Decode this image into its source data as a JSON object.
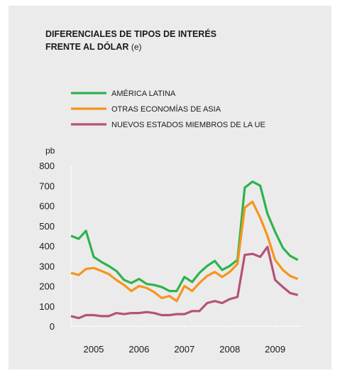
{
  "chart_data": {
    "type": "line",
    "title": [
      "DIFERENCIALES DE TIPOS DE INTERÉS",
      "FRENTE AL DÓLAR"
    ],
    "title_note": "(e)",
    "y_unit": "pb",
    "x": [
      2005.0,
      2005.17,
      2005.33,
      2005.5,
      2005.67,
      2005.83,
      2006.0,
      2006.17,
      2006.33,
      2006.5,
      2006.67,
      2006.83,
      2007.0,
      2007.17,
      2007.33,
      2007.5,
      2007.67,
      2007.83,
      2008.0,
      2008.17,
      2008.33,
      2008.5,
      2008.67,
      2008.83,
      2009.0,
      2009.17,
      2009.33,
      2009.5,
      2009.67,
      2009.83,
      2010.0
    ],
    "series": [
      {
        "name": "AMÉRICA LATINA",
        "color": "#2eb34b",
        "values": [
          450,
          435,
          475,
          345,
          320,
          300,
          275,
          230,
          215,
          235,
          210,
          205,
          195,
          175,
          175,
          245,
          220,
          265,
          300,
          325,
          280,
          300,
          330,
          690,
          720,
          700,
          560,
          470,
          390,
          350,
          330
        ]
      },
      {
        "name": "OTRAS ECONOMÍAS DE ASIA",
        "color": "#f7941d",
        "values": [
          265,
          255,
          285,
          290,
          275,
          260,
          230,
          205,
          175,
          200,
          190,
          170,
          140,
          150,
          125,
          200,
          175,
          215,
          250,
          270,
          245,
          270,
          310,
          590,
          620,
          540,
          450,
          330,
          280,
          250,
          235
        ]
      },
      {
        "name": "NUEVOS ESTADOS MIEMBROS DE LA UE",
        "color": "#b4527a",
        "values": [
          50,
          40,
          55,
          55,
          50,
          50,
          65,
          60,
          65,
          65,
          70,
          65,
          55,
          55,
          60,
          60,
          75,
          75,
          115,
          125,
          115,
          135,
          145,
          355,
          360,
          345,
          395,
          230,
          195,
          165,
          155
        ]
      }
    ],
    "xlim": [
      2005.0,
      2010.1
    ],
    "xticks": [
      {
        "value": 2005.5,
        "label": "2005"
      },
      {
        "value": 2006.5,
        "label": "2006"
      },
      {
        "value": 2007.5,
        "label": "2007"
      },
      {
        "value": 2008.5,
        "label": "2008"
      },
      {
        "value": 2009.5,
        "label": "2009"
      }
    ],
    "ylim": [
      0,
      800
    ],
    "yticks": [
      0,
      100,
      200,
      300,
      400,
      500,
      600,
      700,
      800
    ],
    "grid": false
  }
}
